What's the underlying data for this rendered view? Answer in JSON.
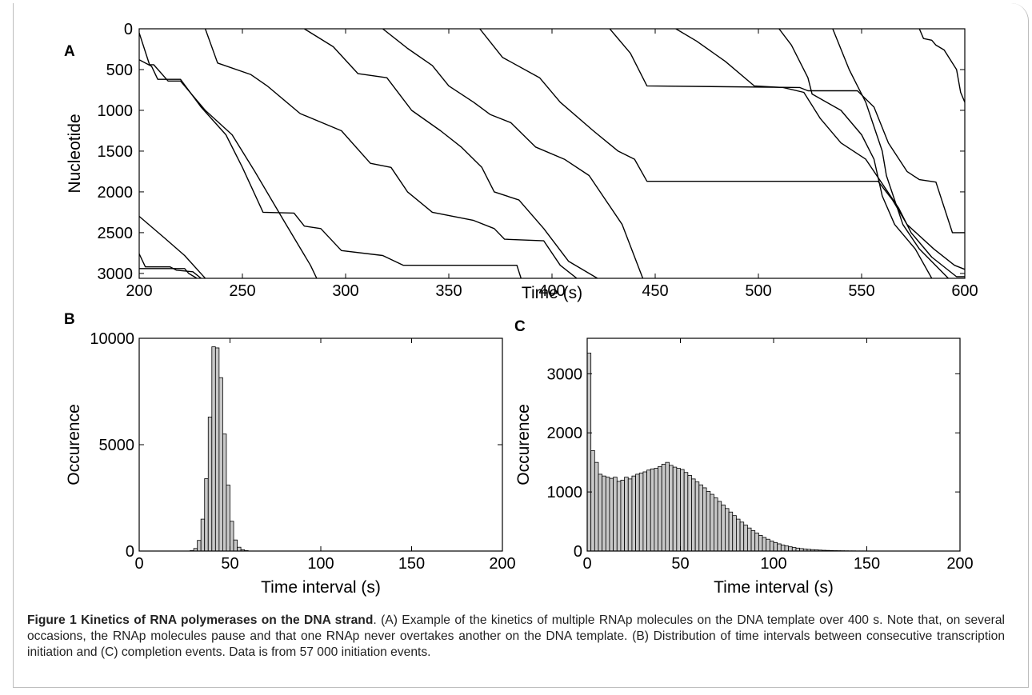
{
  "figure_number": "Figure 1",
  "caption_title": "Kinetics of RNA polymerases on the DNA strand",
  "caption_body": ". (A) Example of the kinetics of multiple RNAp molecules on the DNA template over 400 s. Note that, on several occasions, the RNAp molecules pause and that one RNAp never overtakes another on the DNA template. (B) Distribution of time intervals between consecutive transcription initiation and (C) completion events. Data is from 57 000 initiation events.",
  "colors": {
    "line": "#000000",
    "bar_fill": "#c8c8c8",
    "bar_stroke": "#000000",
    "frame": "#bdbdbd"
  },
  "chart_data": [
    {
      "panel_label": "A",
      "type": "line",
      "xlabel": "Time (s)",
      "ylabel": "Nucleotide",
      "xlim": [
        200,
        600
      ],
      "ylim": [
        0,
        3060
      ],
      "y_inverted": true,
      "xticks": [
        200,
        250,
        300,
        350,
        400,
        450,
        500,
        550,
        600
      ],
      "yticks": [
        0,
        500,
        1000,
        1500,
        2000,
        2500,
        3000
      ],
      "grid": false,
      "series": [
        {
          "points": [
            [
              160,
              2280
            ],
            [
              175,
              2600
            ],
            [
              190,
              2900
            ],
            [
              200,
              3060
            ]
          ]
        },
        {
          "points": [
            [
              160,
              1600
            ],
            [
              180,
              2000
            ],
            [
              198,
              2270
            ],
            [
              200,
              2300
            ],
            [
              212,
              2560
            ],
            [
              222,
              2780
            ],
            [
              232,
              3060
            ]
          ]
        },
        {
          "points": [
            [
              190,
              2600
            ],
            [
              198,
              2740
            ],
            [
              200,
              2760
            ],
            [
              203,
              2920
            ],
            [
              215,
              2920
            ],
            [
              218,
              2960
            ],
            [
              226,
              2980
            ],
            [
              230,
              3060
            ]
          ]
        },
        {
          "points": [
            [
              190,
              2800
            ],
            [
              200,
              2940
            ],
            [
              222,
              2940
            ],
            [
              224,
              3000
            ],
            [
              228,
              3060
            ]
          ]
        },
        {
          "points": [
            [
              200,
              50
            ],
            [
              205,
              440
            ],
            [
              207,
              440
            ],
            [
              214,
              640
            ],
            [
              220,
              640
            ],
            [
              232,
              1000
            ],
            [
              245,
              1300
            ],
            [
              256,
              1750
            ],
            [
              270,
              2350
            ],
            [
              283,
              2900
            ],
            [
              286,
              3060
            ]
          ]
        },
        {
          "points": [
            [
              200,
              380
            ],
            [
              206,
              460
            ],
            [
              209,
              620
            ],
            [
              220,
              620
            ],
            [
              230,
              960
            ],
            [
              242,
              1300
            ],
            [
              250,
              1700
            ],
            [
              260,
              2250
            ],
            [
              275,
              2260
            ],
            [
              280,
              2420
            ],
            [
              288,
              2450
            ],
            [
              298,
              2720
            ],
            [
              318,
              2780
            ],
            [
              328,
              2900
            ],
            [
              383,
              2900
            ],
            [
              385,
              3060
            ]
          ]
        },
        {
          "points": [
            [
              232,
              0
            ],
            [
              238,
              420
            ],
            [
              254,
              560
            ],
            [
              262,
              700
            ],
            [
              278,
              1040
            ],
            [
              298,
              1250
            ],
            [
              312,
              1650
            ],
            [
              322,
              1700
            ],
            [
              330,
              2000
            ],
            [
              342,
              2250
            ],
            [
              362,
              2350
            ],
            [
              372,
              2450
            ],
            [
              377,
              2580
            ],
            [
              396,
              2600
            ],
            [
              404,
              2900
            ],
            [
              412,
              3060
            ]
          ]
        },
        {
          "points": [
            [
              280,
              0
            ],
            [
              294,
              220
            ],
            [
              306,
              550
            ],
            [
              320,
              600
            ],
            [
              332,
              1000
            ],
            [
              346,
              1250
            ],
            [
              356,
              1450
            ],
            [
              366,
              1700
            ],
            [
              372,
              2000
            ],
            [
              384,
              2100
            ],
            [
              396,
              2450
            ],
            [
              408,
              2850
            ],
            [
              422,
              3060
            ]
          ]
        },
        {
          "points": [
            [
              318,
              0
            ],
            [
              330,
              240
            ],
            [
              342,
              450
            ],
            [
              350,
              700
            ],
            [
              362,
              900
            ],
            [
              370,
              1050
            ],
            [
              380,
              1150
            ],
            [
              392,
              1450
            ],
            [
              406,
              1600
            ],
            [
              418,
              1800
            ],
            [
              434,
              2400
            ],
            [
              444,
              3060
            ]
          ]
        },
        {
          "points": [
            [
              365,
              0
            ],
            [
              376,
              350
            ],
            [
              394,
              600
            ],
            [
              404,
              900
            ],
            [
              420,
              1250
            ],
            [
              432,
              1500
            ],
            [
              440,
              1600
            ],
            [
              446,
              1870
            ],
            [
              558,
              1870
            ],
            [
              565,
              2100
            ],
            [
              572,
              2400
            ],
            [
              585,
              2700
            ],
            [
              595,
              2900
            ],
            [
              600,
              2950
            ]
          ]
        },
        {
          "points": [
            [
              428,
              0
            ],
            [
              438,
              300
            ],
            [
              446,
              700
            ],
            [
              520,
              720
            ],
            [
              524,
              760
            ],
            [
              548,
              760
            ],
            [
              556,
              960
            ],
            [
              563,
              1400
            ],
            [
              572,
              1750
            ],
            [
              578,
              1850
            ],
            [
              586,
              1880
            ],
            [
              594,
              2500
            ],
            [
              600,
              2500
            ]
          ]
        },
        {
          "points": [
            [
              460,
              0
            ],
            [
              470,
              150
            ],
            [
              484,
              400
            ],
            [
              498,
              700
            ],
            [
              512,
              720
            ],
            [
              522,
              780
            ],
            [
              530,
              1100
            ],
            [
              540,
              1400
            ],
            [
              552,
              1600
            ],
            [
              560,
              1900
            ],
            [
              568,
              2200
            ],
            [
              574,
              2500
            ],
            [
              584,
              2800
            ],
            [
              596,
              3040
            ],
            [
              600,
              3040
            ]
          ]
        },
        {
          "points": [
            [
              510,
              0
            ],
            [
              516,
              200
            ],
            [
              524,
              600
            ],
            [
              526,
              800
            ],
            [
              540,
              1000
            ],
            [
              550,
              1300
            ],
            [
              556,
              1600
            ],
            [
              560,
              2050
            ],
            [
              566,
              2400
            ],
            [
              576,
              2700
            ],
            [
              584,
              3060
            ]
          ]
        },
        {
          "points": [
            [
              536,
              0
            ],
            [
              544,
              500
            ],
            [
              548,
              700
            ],
            [
              552,
              900
            ],
            [
              556,
              1200
            ],
            [
              560,
              1500
            ],
            [
              562,
              1800
            ],
            [
              566,
              2100
            ],
            [
              570,
              2400
            ],
            [
              578,
              2700
            ],
            [
              592,
              3060
            ]
          ]
        },
        {
          "points": [
            [
              578,
              0
            ],
            [
              580,
              120
            ],
            [
              584,
              140
            ],
            [
              586,
              200
            ],
            [
              590,
              260
            ],
            [
              596,
              500
            ],
            [
              598,
              780
            ],
            [
              600,
              900
            ]
          ]
        }
      ]
    },
    {
      "panel_label": "B",
      "type": "bar",
      "xlabel": "Time interval (s)",
      "ylabel": "Occurence",
      "xlim": [
        0,
        200
      ],
      "ylim": [
        0,
        10000
      ],
      "xticks": [
        0,
        50,
        100,
        150,
        200
      ],
      "yticks": [
        0,
        5000,
        10000
      ],
      "bin_width": 2,
      "bin_start": 0,
      "values": [
        0,
        0,
        0,
        0,
        0,
        0,
        0,
        0,
        0,
        0,
        0,
        0,
        0,
        0,
        20,
        120,
        500,
        1500,
        3400,
        6300,
        9600,
        9550,
        8150,
        5500,
        3100,
        1400,
        520,
        180,
        60,
        20,
        0,
        0,
        0,
        0,
        0,
        0,
        0,
        0,
        0,
        0,
        0,
        0,
        0,
        0,
        0,
        0,
        0,
        0,
        0,
        0,
        0,
        0,
        0,
        0,
        0,
        0,
        0,
        0,
        0,
        0,
        0,
        0,
        0,
        0,
        0,
        0,
        0,
        0,
        0,
        0,
        0,
        0,
        0,
        0,
        0,
        0,
        0,
        0,
        0,
        0,
        0,
        0,
        0,
        0,
        0,
        0,
        0,
        0,
        0,
        0,
        0,
        0,
        0,
        0,
        0,
        0,
        0,
        0,
        0,
        0
      ]
    },
    {
      "panel_label": "C",
      "type": "bar",
      "xlabel": "Time interval (s)",
      "ylabel": "Occurence",
      "xlim": [
        0,
        200
      ],
      "ylim": [
        0,
        3600
      ],
      "xticks": [
        0,
        50,
        100,
        150,
        200
      ],
      "yticks": [
        0,
        1000,
        2000,
        3000
      ],
      "bin_width": 2,
      "bin_start": 0,
      "values": [
        3350,
        1700,
        1500,
        1300,
        1270,
        1250,
        1230,
        1250,
        1180,
        1200,
        1250,
        1220,
        1270,
        1300,
        1320,
        1340,
        1370,
        1390,
        1400,
        1430,
        1470,
        1500,
        1450,
        1420,
        1400,
        1380,
        1330,
        1280,
        1220,
        1170,
        1120,
        1070,
        1010,
        960,
        900,
        840,
        780,
        720,
        660,
        600,
        540,
        490,
        440,
        390,
        345,
        305,
        265,
        230,
        200,
        170,
        145,
        122,
        102,
        86,
        72,
        60,
        50,
        42,
        35,
        29,
        24,
        20,
        16,
        13,
        11,
        9,
        7,
        6,
        5,
        4,
        3,
        3,
        2,
        2,
        2,
        1,
        1,
        1,
        1,
        1,
        1,
        1,
        1,
        1,
        1,
        1,
        1,
        1,
        1,
        1,
        1,
        1,
        1,
        1,
        1,
        1,
        1,
        1,
        1,
        1
      ]
    }
  ]
}
